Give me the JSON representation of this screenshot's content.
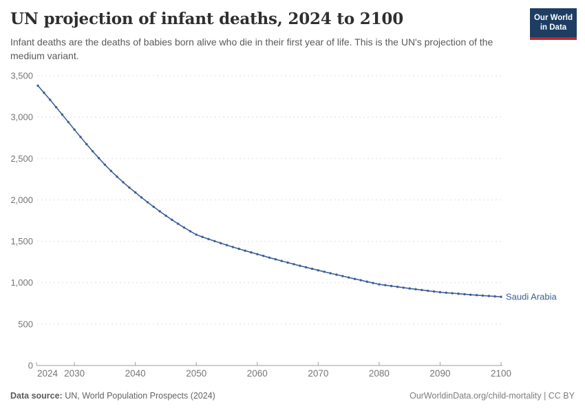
{
  "header": {
    "title": "UN projection of infant deaths, 2024 to 2100",
    "subtitle": "Infant deaths are the deaths of babies born alive who die in their first year of life. This is the UN's projection of the medium variant.",
    "logo": {
      "line1": "Our World",
      "line2": "in Data"
    }
  },
  "chart_data": {
    "type": "line",
    "title": "UN projection of infant deaths, 2024 to 2100",
    "xlabel": "",
    "ylabel": "",
    "xlim": [
      2024,
      2100
    ],
    "ylim": [
      0,
      3500
    ],
    "grid": "horizontal-dashed",
    "legend_position": "end-of-line-label",
    "markers": true,
    "xticks": [
      2024,
      2030,
      2040,
      2050,
      2060,
      2070,
      2080,
      2090,
      2100
    ],
    "xtick_labels": [
      "2024",
      "2030",
      "2040",
      "2050",
      "2060",
      "2070",
      "2080",
      "2090",
      "2100"
    ],
    "yticks": [
      0,
      500,
      1000,
      1500,
      2000,
      2500,
      3000,
      3500
    ],
    "ytick_labels": [
      "0",
      "500",
      "1,000",
      "1,500",
      "2,000",
      "2,500",
      "3,000",
      "3,500"
    ],
    "x": [
      2024,
      2025,
      2026,
      2027,
      2028,
      2029,
      2030,
      2031,
      2032,
      2033,
      2034,
      2035,
      2036,
      2037,
      2038,
      2039,
      2040,
      2041,
      2042,
      2043,
      2044,
      2045,
      2046,
      2047,
      2048,
      2049,
      2050,
      2051,
      2052,
      2053,
      2054,
      2055,
      2056,
      2057,
      2058,
      2059,
      2060,
      2061,
      2062,
      2063,
      2064,
      2065,
      2066,
      2067,
      2068,
      2069,
      2070,
      2071,
      2072,
      2073,
      2074,
      2075,
      2076,
      2077,
      2078,
      2079,
      2080,
      2081,
      2082,
      2083,
      2084,
      2085,
      2086,
      2087,
      2088,
      2089,
      2090,
      2091,
      2092,
      2093,
      2094,
      2095,
      2096,
      2097,
      2098,
      2099,
      2100
    ],
    "series": [
      {
        "name": "Saudi Arabia",
        "values": [
          3380,
          3295,
          3210,
          3120,
          3030,
          2940,
          2850,
          2760,
          2673,
          2587,
          2505,
          2425,
          2350,
          2280,
          2213,
          2150,
          2090,
          2030,
          1972,
          1916,
          1862,
          1810,
          1760,
          1712,
          1666,
          1622,
          1580,
          1553,
          1527,
          1502,
          1478,
          1454,
          1431,
          1409,
          1387,
          1366,
          1345,
          1324,
          1303,
          1283,
          1263,
          1243,
          1224,
          1205,
          1186,
          1168,
          1150,
          1132,
          1114,
          1097,
          1080,
          1063,
          1046,
          1030,
          1013,
          997,
          980,
          970,
          960,
          950,
          940,
          930,
          921,
          912,
          903,
          894,
          885,
          879,
          873,
          867,
          861,
          855,
          850,
          845,
          840,
          835,
          830
        ]
      }
    ]
  },
  "footer": {
    "source_label": "Data source:",
    "source_text": " UN, World Population Prospects (2024)",
    "credit": "OurWorldinData.org/child-mortality | CC BY"
  },
  "colors": {
    "series": "#3d5f97",
    "grid": "#dedede",
    "axis": "#9e9e9e",
    "tick_text": "#757575",
    "logo_bg": "#1d3d63",
    "logo_bar": "#c4262e"
  }
}
